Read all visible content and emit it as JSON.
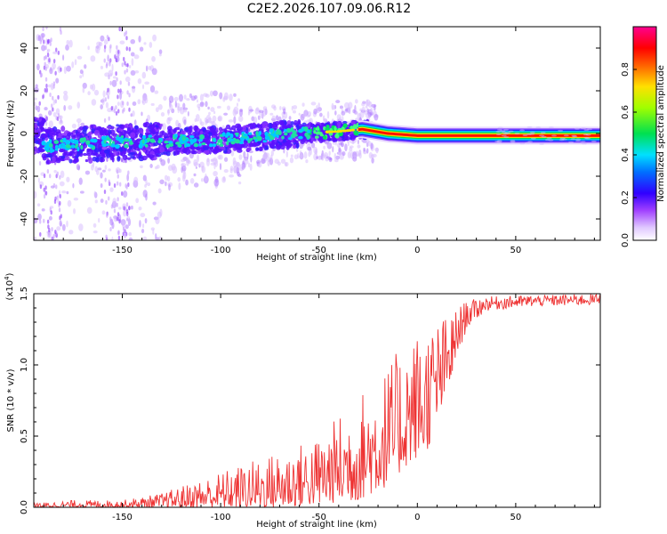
{
  "title": "C2E2.2026.107.09.06.R12",
  "chart_data": [
    {
      "type": "heatmap",
      "name": "spectrogram",
      "xlabel": "Height of straight line (km)",
      "ylabel": "Frequency (Hz)",
      "xlim": [
        -195,
        93
      ],
      "ylim": [
        -50,
        50
      ],
      "xticks": [
        -150,
        -100,
        -50,
        0,
        50
      ],
      "yticks": [
        -40,
        -20,
        0,
        20,
        40
      ],
      "colorbar": {
        "label": "Normalized spectral amplitude",
        "range": [
          0.0,
          1.0
        ],
        "ticks": [
          0.0,
          0.2,
          0.4,
          0.6,
          0.8
        ]
      },
      "ridge": [
        {
          "x": -190,
          "y": -6
        },
        {
          "x": -150,
          "y": -4
        },
        {
          "x": -100,
          "y": -3
        },
        {
          "x": -60,
          "y": 0
        },
        {
          "x": -40,
          "y": 1
        },
        {
          "x": -28,
          "y": 2
        },
        {
          "x": -15,
          "y": 0
        },
        {
          "x": 0,
          "y": -1
        },
        {
          "x": 93,
          "y": -1
        }
      ],
      "colors": [
        "#ffffff",
        "#e0c8ff",
        "#a060ff",
        "#6010ff",
        "#2030ff",
        "#00c0ff",
        "#00e060",
        "#ffd000",
        "#ff2000",
        "#ff0080"
      ]
    },
    {
      "type": "line",
      "name": "snr",
      "xlabel": "Height of straight line (km)",
      "ylabel": "SNR (10 * v/v)",
      "scale_label": "(x10",
      "scale_exp": "4",
      "scale_close": ")",
      "xlim": [
        -195,
        93
      ],
      "ylim": [
        0,
        1.5
      ],
      "xticks": [
        -150,
        -100,
        -50,
        0,
        50
      ],
      "yticks": [
        0.0,
        0.5,
        1.0,
        1.5
      ],
      "line_color": "#ee3333",
      "envelope": [
        {
          "x": -195,
          "lo": 0.0,
          "hi": 0.03
        },
        {
          "x": -175,
          "lo": 0.0,
          "hi": 0.05
        },
        {
          "x": -150,
          "lo": 0.0,
          "hi": 0.05
        },
        {
          "x": -130,
          "lo": 0.0,
          "hi": 0.1
        },
        {
          "x": -110,
          "lo": 0.0,
          "hi": 0.2
        },
        {
          "x": -90,
          "lo": 0.0,
          "hi": 0.3
        },
        {
          "x": -70,
          "lo": 0.0,
          "hi": 0.4
        },
        {
          "x": -50,
          "lo": 0.02,
          "hi": 0.5
        },
        {
          "x": -30,
          "lo": 0.05,
          "hi": 0.8
        },
        {
          "x": -15,
          "lo": 0.15,
          "hi": 1.0
        },
        {
          "x": -5,
          "lo": 0.3,
          "hi": 1.2
        },
        {
          "x": 5,
          "lo": 0.4,
          "hi": 1.3
        },
        {
          "x": 15,
          "lo": 0.8,
          "hi": 1.35
        },
        {
          "x": 25,
          "lo": 1.25,
          "hi": 1.45
        },
        {
          "x": 35,
          "lo": 1.38,
          "hi": 1.48
        },
        {
          "x": 60,
          "lo": 1.41,
          "hi": 1.49
        },
        {
          "x": 93,
          "lo": 1.42,
          "hi": 1.5
        }
      ]
    }
  ]
}
